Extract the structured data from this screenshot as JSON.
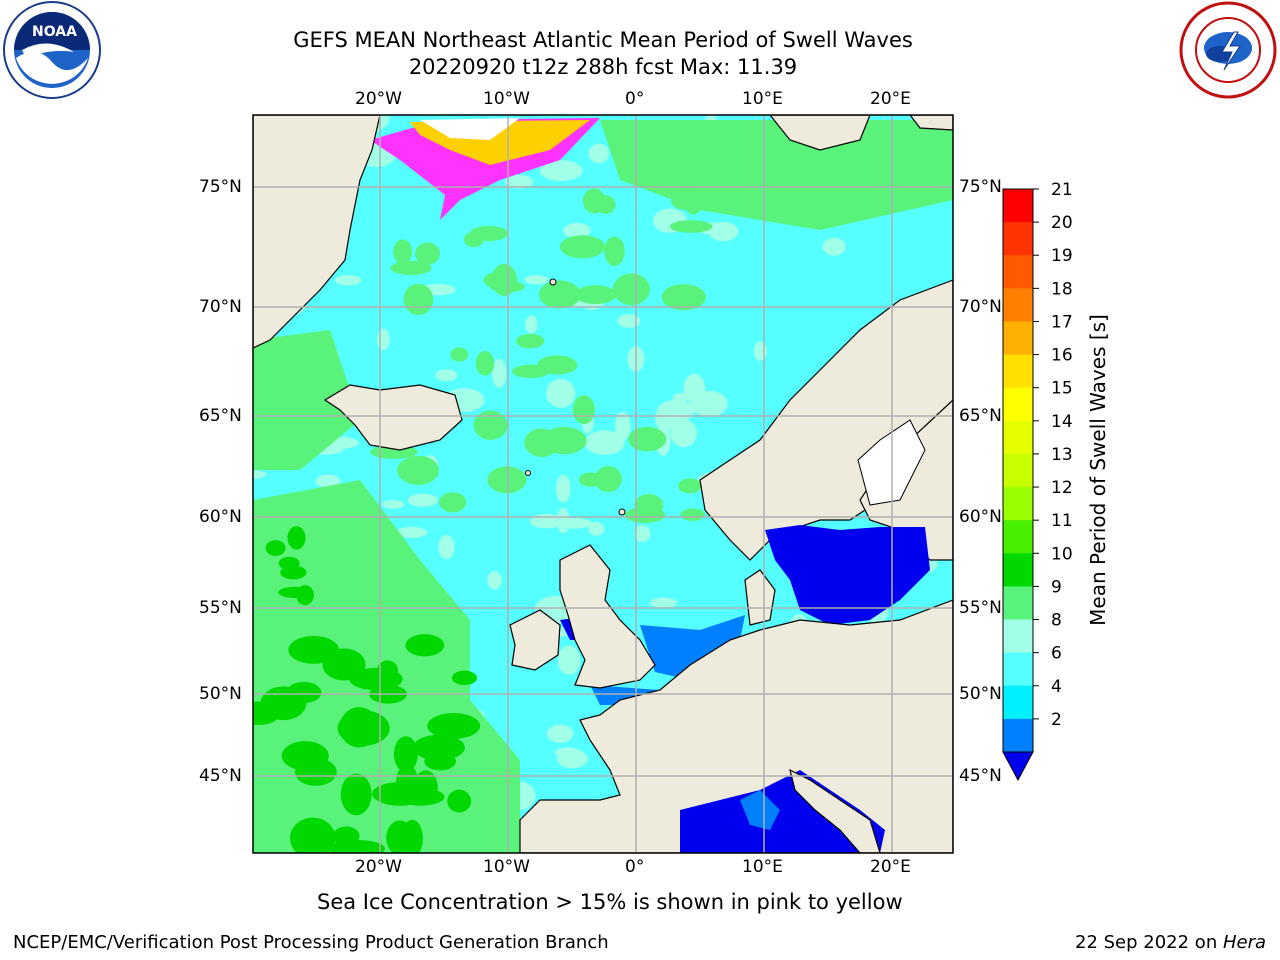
{
  "header": {
    "title_line1": "GEFS MEAN Northeast Atlantic Mean Period of Swell Waves",
    "title_line2": "20220920 t12z 288h fcst   Max: 11.39"
  },
  "logos": {
    "left": "NOAA",
    "left_ring": "NATIONAL OCEANIC AND ATMOSPHERIC ADMINISTRATION · U.S. DEPARTMENT OF COMMERCE",
    "right_ring": "NATIONAL WEATHER SERVICE"
  },
  "axes": {
    "lon_labels": [
      "20°W",
      "10°W",
      "0°",
      "10°E",
      "20°E"
    ],
    "lat_labels": [
      "75°N",
      "70°N",
      "65°N",
      "60°N",
      "55°N",
      "50°N",
      "45°N"
    ]
  },
  "colorbar": {
    "label": "Mean Period of Swell Waves [s]",
    "ticks": [
      "21",
      "20",
      "19",
      "18",
      "17",
      "16",
      "15",
      "14",
      "13",
      "12",
      "11",
      "10",
      "9",
      "8",
      "6",
      "4",
      "2"
    ],
    "colors": [
      "#ff0000",
      "#ff3300",
      "#ff5a00",
      "#ff8000",
      "#ffb000",
      "#ffe000",
      "#ffff00",
      "#e6ff00",
      "#c8ff00",
      "#99ff00",
      "#48ef00",
      "#00d800",
      "#59f27a",
      "#a0ffe6",
      "#55ffff",
      "#00f0ff",
      "#0080ff"
    ],
    "extend_color": "#0000ee"
  },
  "annotation": "Sea Ice Concentration > 15% is shown in pink to yellow",
  "footer": {
    "left": "NCEP/EMC/Verification Post Processing Product Generation Branch",
    "right_date": "22 Sep 2022 on ",
    "right_host": "Hera"
  },
  "colors": {
    "land": "#eeebdc",
    "ocean_main": "#55ffff",
    "ocean_light": "#a0ffe6",
    "ocean_green": "#59f27a",
    "ocean_deep_green": "#00d800",
    "shallow_blue": "#0080ff",
    "inland_blue": "#0000ee",
    "ice_pink": "#ff33ff",
    "ice_yellow": "#ffd000"
  }
}
